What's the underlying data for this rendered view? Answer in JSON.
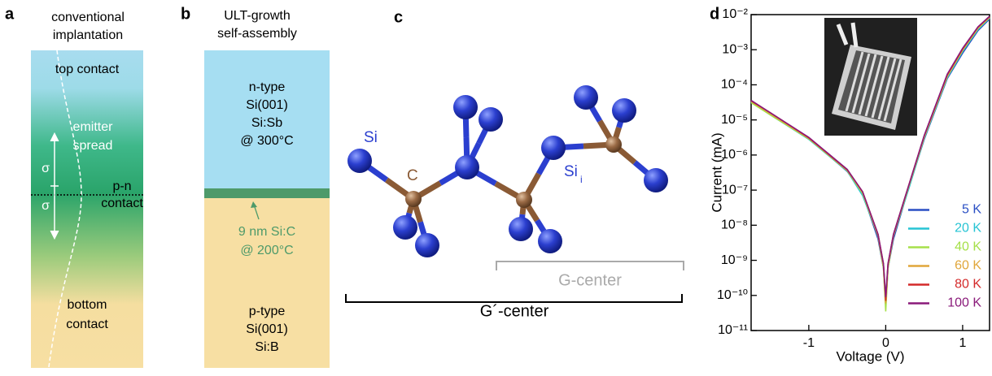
{
  "panels": {
    "a": {
      "letter": "a",
      "title": [
        "conventional",
        "implantation"
      ],
      "top": "top contact",
      "emitter": [
        "emitter",
        "spread"
      ],
      "sigma_upper": "σ",
      "sigma_lower": "σ",
      "junction": [
        "p-n",
        "contact"
      ],
      "bottom": [
        "bottom",
        "contact"
      ]
    },
    "b": {
      "letter": "b",
      "title": [
        "ULT-growth",
        "self-assembly"
      ],
      "n_layer": [
        "n-type",
        "Si(001)",
        "Si:Sb",
        "@ 300°C"
      ],
      "c_layer": [
        "9 nm Si:C",
        "@ 200°C"
      ],
      "p_layer": [
        "p-type",
        "Si(001)",
        "Si:B"
      ]
    },
    "c": {
      "letter": "c",
      "si": "Si",
      "c": "C",
      "si_i": "Si",
      "si_i_sub": "i",
      "g_center": "G-center",
      "g_prime_center": "G´-center"
    }
  },
  "chart_data": {
    "type": "line",
    "panel_label": "d",
    "x_label": "Voltage (V)",
    "y_label": "Current (mA)",
    "log_y": true,
    "legend_position": "lower right",
    "xlim": [
      -1.75,
      1.35
    ],
    "xticks": [
      -1,
      0,
      1
    ],
    "ylim": [
      1e-11,
      0.01
    ],
    "yticks": [
      {
        "value": 1e-11,
        "label": "10⁻¹¹"
      },
      {
        "value": 1e-10,
        "label": "10⁻¹⁰"
      },
      {
        "value": 1e-09,
        "label": "10⁻⁹"
      },
      {
        "value": 1e-08,
        "label": "10⁻⁸"
      },
      {
        "value": 1e-07,
        "label": "10⁻⁷"
      },
      {
        "value": 1e-06,
        "label": "10⁻⁶"
      },
      {
        "value": 1e-05,
        "label": "10⁻⁵"
      },
      {
        "value": 0.0001,
        "label": "10⁻⁴"
      },
      {
        "value": 0.001,
        "label": "10⁻³"
      },
      {
        "value": 0.01,
        "label": "10⁻²"
      }
    ],
    "x": [
      -1.75,
      -1.5,
      -1.0,
      -0.5,
      -0.3,
      -0.1,
      -0.03,
      0,
      0.03,
      0.1,
      0.3,
      0.5,
      0.8,
      1.0,
      1.2,
      1.35
    ],
    "series": [
      {
        "name": "5 K",
        "color": "#2a4fc4",
        "values": [
          3.3e-05,
          1.5e-05,
          3e-06,
          3.4e-07,
          8e-08,
          4e-09,
          6e-10,
          5e-11,
          6e-10,
          4e-09,
          1.2e-07,
          2.8e-06,
          0.00015,
          0.0008,
          0.0035,
          0.0075
        ]
      },
      {
        "name": "20 K",
        "color": "#27c4d4",
        "values": [
          3.2e-05,
          1.4e-05,
          2.8e-06,
          3.5e-07,
          7e-08,
          5e-09,
          7e-10,
          8e-11,
          7e-10,
          5e-09,
          1.1e-07,
          3e-06,
          0.00016,
          0.0009,
          0.0038,
          0.008
        ]
      },
      {
        "name": "40 K",
        "color": "#a6e04a",
        "values": [
          3.1e-05,
          1.4e-05,
          2.9e-06,
          3.6e-07,
          8e-08,
          5e-09,
          6e-10,
          3.5e-11,
          6e-10,
          5e-09,
          1.3e-07,
          3.2e-06,
          0.00017,
          0.00095,
          0.004,
          0.0082
        ]
      },
      {
        "name": "60 K",
        "color": "#e0a63a",
        "values": [
          3.4e-05,
          1.5e-05,
          3e-06,
          3.7e-07,
          8.5e-08,
          5e-09,
          7e-10,
          6e-11,
          7e-10,
          5e-09,
          1.3e-07,
          3.3e-06,
          0.00018,
          0.001,
          0.0042,
          0.0085
        ]
      },
      {
        "name": "80 K",
        "color": "#d42a2a",
        "values": [
          3.5e-05,
          1.6e-05,
          3.1e-06,
          3.8e-07,
          9e-08,
          5.5e-09,
          8e-10,
          7e-11,
          8e-10,
          5.5e-09,
          1.4e-07,
          3.5e-06,
          0.00019,
          0.00105,
          0.0044,
          0.0088
        ]
      },
      {
        "name": "100 K",
        "color": "#8a1a7a",
        "values": [
          3.6e-05,
          1.6e-05,
          3.2e-06,
          3.9e-07,
          9e-08,
          5.5e-09,
          8e-10,
          9e-11,
          8e-10,
          5.5e-09,
          1.4e-07,
          3.6e-06,
          0.0002,
          0.0011,
          0.0045,
          0.009
        ]
      }
    ]
  }
}
